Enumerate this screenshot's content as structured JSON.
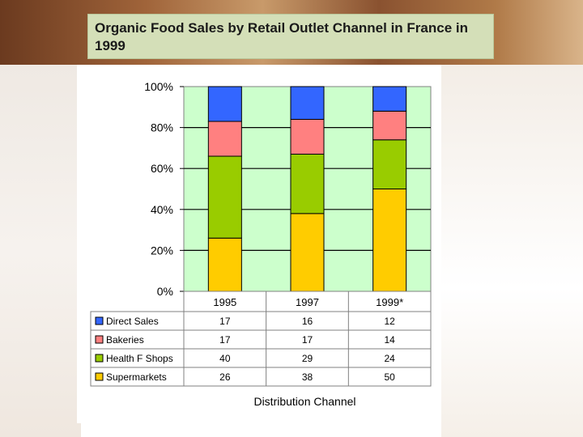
{
  "slide": {
    "title": " Organic Food Sales by Retail Outlet Channel in France in 1999"
  },
  "chart_data": {
    "type": "bar",
    "stacked": true,
    "percent_stacked": true,
    "categories": [
      "1995",
      "1997",
      "1999*"
    ],
    "series": [
      {
        "name": "Supermarkets",
        "values": [
          26,
          38,
          50
        ],
        "color": "#ffcc00"
      },
      {
        "name": "Health F Shops",
        "values": [
          40,
          29,
          24
        ],
        "color": "#99cc00"
      },
      {
        "name": "Bakeries",
        "values": [
          17,
          17,
          14
        ],
        "color": "#ff8080"
      },
      {
        "name": "Direct Sales",
        "values": [
          17,
          16,
          12
        ],
        "color": "#3366ff"
      }
    ],
    "table_order": [
      "Direct Sales",
      "Bakeries",
      "Health F Shops",
      "Supermarkets"
    ],
    "y_ticks": [
      "0%",
      "20%",
      "40%",
      "60%",
      "80%",
      "100%"
    ],
    "ylim": [
      0,
      100
    ],
    "xlabel": "Distribution Channel",
    "ylabel": "",
    "plot_background": "#ccffcc",
    "grid": true,
    "data_table": true
  }
}
